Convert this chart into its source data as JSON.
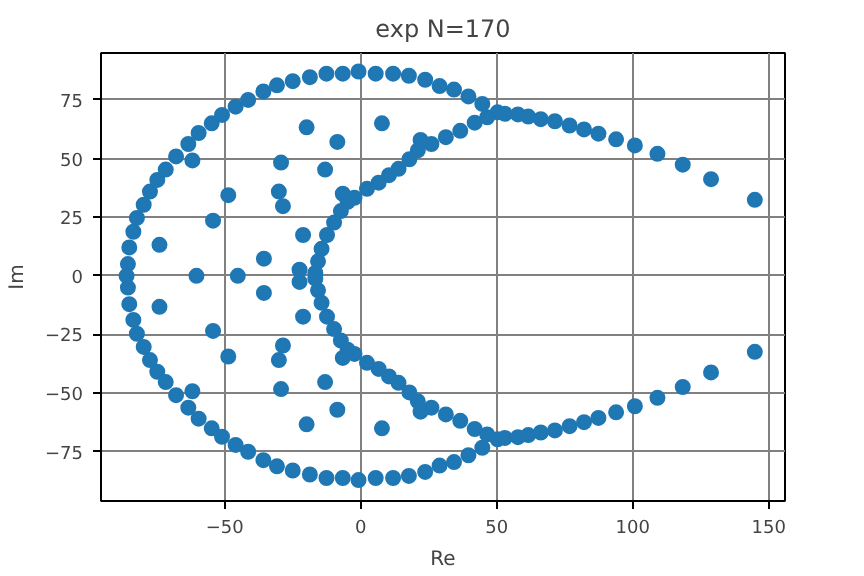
{
  "chart_data": {
    "type": "scatter",
    "title": "exp N=170",
    "xlabel": "Re",
    "ylabel": "Im",
    "x": [
      -85.6,
      -85.1,
      -83.6,
      -82.3,
      -79.8,
      -77.5,
      -74.8,
      -71.7,
      -67.9,
      -63.4,
      -59.6,
      -54.8,
      -51.0,
      -46.0,
      -41.4,
      -35.8,
      -30.8,
      -25.0,
      -18.7,
      -12.6,
      -6.6,
      -0.8,
      5.5,
      11.9,
      17.7,
      23.7,
      29.0,
      34.3,
      39.6,
      44.7,
      50.3,
      53.0,
      57.8,
      61.6,
      66.2,
      71.4,
      76.8,
      82.1,
      87.4,
      93.9,
      100.8,
      109.1,
      118.4,
      128.8,
      144.9,
      46.5,
      41.9,
      36.6,
      31.3,
      26.0,
      22.0,
      21.0,
      17.9,
      13.9,
      10.4,
      6.6,
      2.3,
      -2.3,
      -4.8,
      -7.3,
      -9.8,
      -12.4,
      -14.4,
      -15.7,
      -16.7,
      -19.9,
      7.8,
      -8.6,
      -29.3,
      -61.9,
      -13.1,
      -6.6,
      -30.1,
      -28.6,
      -48.7,
      -54.3,
      -74.0,
      -21.2,
      -35.6,
      -22.5,
      -85.6,
      -85.1,
      -83.6,
      -82.3,
      -79.8,
      -77.5,
      -74.8,
      -71.7,
      -67.9,
      -63.4,
      -59.6,
      -54.8,
      -51.0,
      -46.0,
      -41.4,
      -35.8,
      -30.8,
      -25.0,
      -18.7,
      -12.6,
      -6.6,
      -0.8,
      5.5,
      11.9,
      17.7,
      23.7,
      29.0,
      34.3,
      39.6,
      44.7,
      50.3,
      53.0,
      57.8,
      61.6,
      66.2,
      71.4,
      76.8,
      82.1,
      87.4,
      93.9,
      100.8,
      109.1,
      118.4,
      128.8,
      144.9,
      46.5,
      41.9,
      36.6,
      31.3,
      26.0,
      22.0,
      21.0,
      17.9,
      13.9,
      10.4,
      6.6,
      2.3,
      -2.3,
      -4.8,
      -7.3,
      -9.8,
      -12.4,
      -14.4,
      -15.7,
      -16.7,
      -19.9,
      7.8,
      -8.6,
      -29.3,
      -61.9,
      -13.1,
      -6.6,
      -30.1,
      -28.6,
      -48.7,
      -54.3,
      -74.0,
      -21.2,
      -35.6,
      -22.5,
      -86.1,
      -60.4,
      -45.2
    ],
    "values": [
      5.0,
      12.1,
      18.8,
      24.7,
      30.3,
      35.9,
      40.9,
      45.3,
      50.9,
      56.2,
      60.9,
      65.0,
      68.6,
      72.1,
      75.0,
      78.6,
      81.2,
      83.0,
      84.7,
      86.2,
      86.2,
      87.1,
      86.2,
      86.2,
      85.3,
      83.6,
      80.9,
      79.4,
      76.5,
      73.3,
      69.7,
      69.1,
      68.8,
      67.9,
      66.8,
      65.9,
      64.1,
      62.4,
      60.6,
      58.2,
      55.6,
      52.0,
      47.4,
      41.2,
      32.4,
      67.6,
      65.3,
      61.8,
      59.1,
      56.2,
      57.9,
      53.5,
      49.7,
      45.6,
      42.9,
      39.7,
      37.1,
      33.3,
      31.5,
      27.6,
      22.7,
      17.4,
      11.5,
      6.2,
      1.2,
      63.3,
      65.0,
      57.1,
      48.3,
      49.2,
      45.3,
      35.0,
      35.9,
      29.7,
      34.4,
      23.5,
      13.2,
      17.4,
      7.3,
      2.6,
      -5.0,
      -12.1,
      -18.8,
      -24.7,
      -30.3,
      -35.9,
      -40.9,
      -45.3,
      -50.9,
      -56.2,
      -60.9,
      -65.0,
      -68.6,
      -72.1,
      -75.0,
      -78.6,
      -81.2,
      -83.0,
      -84.7,
      -86.2,
      -86.2,
      -87.1,
      -86.2,
      -86.2,
      -85.3,
      -83.6,
      -80.9,
      -79.4,
      -76.5,
      -73.3,
      -69.7,
      -69.1,
      -68.8,
      -67.9,
      -66.8,
      -65.9,
      -64.1,
      -62.4,
      -60.6,
      -58.2,
      -55.6,
      -52.0,
      -47.4,
      -41.2,
      -32.4,
      -67.6,
      -65.3,
      -61.8,
      -59.1,
      -56.2,
      -57.9,
      -53.5,
      -49.7,
      -45.6,
      -42.9,
      -39.7,
      -37.1,
      -33.3,
      -31.5,
      -27.6,
      -22.7,
      -17.4,
      -11.5,
      -6.2,
      -1.2,
      -63.3,
      -65.0,
      -57.1,
      -48.3,
      -49.2,
      -45.3,
      -35.0,
      -35.9,
      -29.7,
      -34.4,
      -23.5,
      -13.2,
      -17.4,
      -7.3,
      -2.6,
      0,
      0,
      0
    ],
    "color": "#1f77b4",
    "marker": "circle",
    "xlim": [
      -95.5,
      156
    ],
    "ylim": [
      -96,
      95
    ],
    "xticks": [
      -50,
      0,
      50,
      100,
      150
    ],
    "yticks": [
      -75,
      -50,
      -25,
      0,
      25,
      50,
      75
    ],
    "grid": true
  }
}
